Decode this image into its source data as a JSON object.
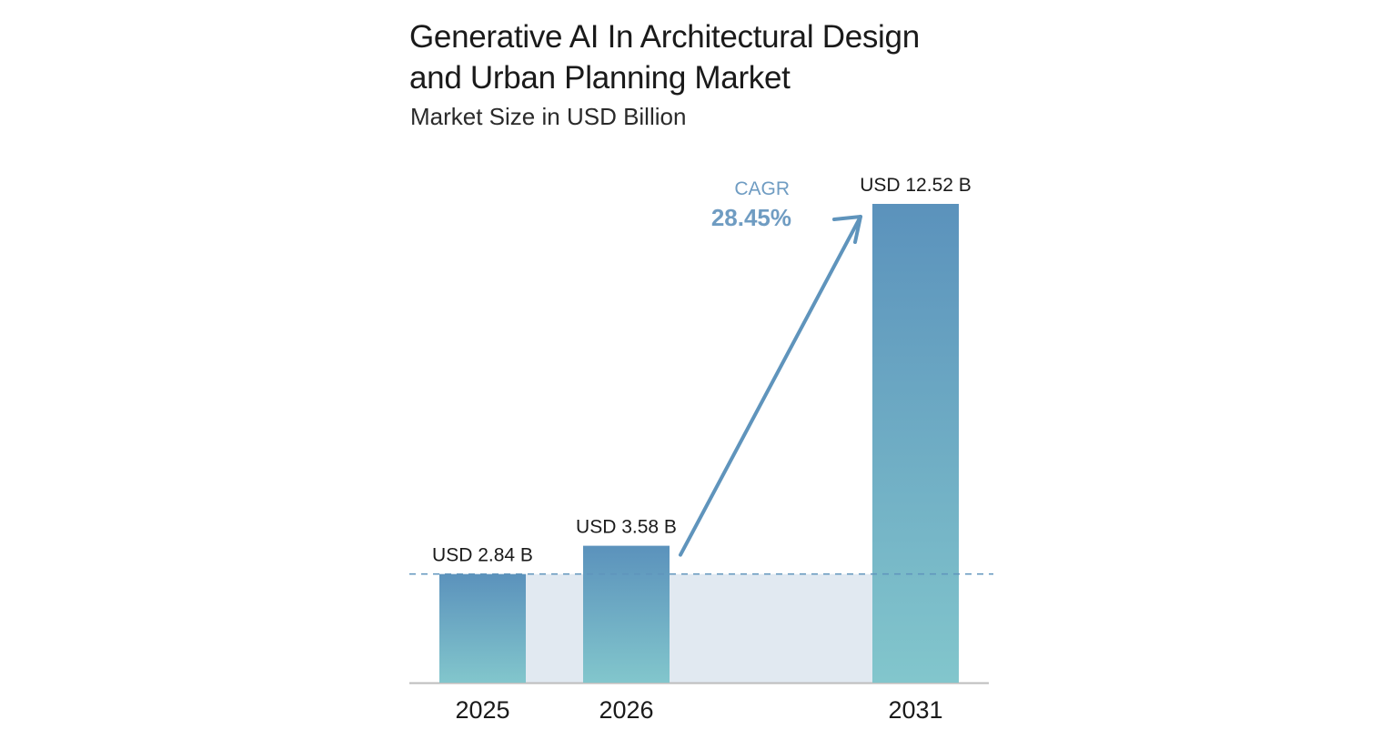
{
  "title_line1": "Generative AI In Architectural Design",
  "title_line2": "and Urban Planning Market",
  "subtitle": "Market Size in USD Billion",
  "chart_data": {
    "type": "bar",
    "categories": [
      "2025",
      "2026",
      "2031"
    ],
    "values": [
      2.84,
      3.58,
      12.52
    ],
    "value_labels": [
      "USD 2.84 B",
      "USD 3.58 B",
      "USD 12.52 B"
    ],
    "cagr_label": "CAGR",
    "cagr_value": "28.45%",
    "reference_line_value": 2.84,
    "grid": false,
    "colors": {
      "bar_top": "#5b92bc",
      "bar_bottom": "#82c6cc",
      "band": "#e1e9f1",
      "arrow": "#5f94bc",
      "cagr_text": "#6f9cc2",
      "axis": "#bdbdbd"
    }
  }
}
